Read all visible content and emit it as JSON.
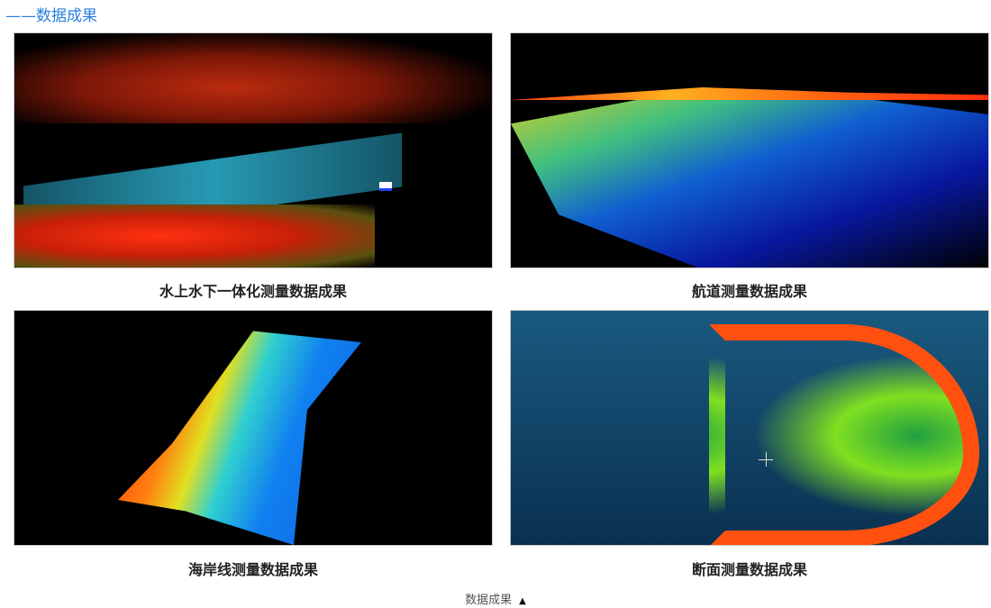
{
  "section": {
    "title": "——数据成果"
  },
  "gallery": [
    {
      "caption": "水上水下一体化测量数据成果",
      "image": "point-cloud-shoreline-trees"
    },
    {
      "caption": "航道测量数据成果",
      "image": "point-cloud-channel"
    },
    {
      "caption": "海岸线测量数据成果",
      "image": "point-cloud-coastline"
    },
    {
      "caption": "断面测量数据成果",
      "image": "point-cloud-cross-section"
    }
  ],
  "footer": {
    "label": "数据成果",
    "toggle_icon": "triangle-up-icon"
  }
}
